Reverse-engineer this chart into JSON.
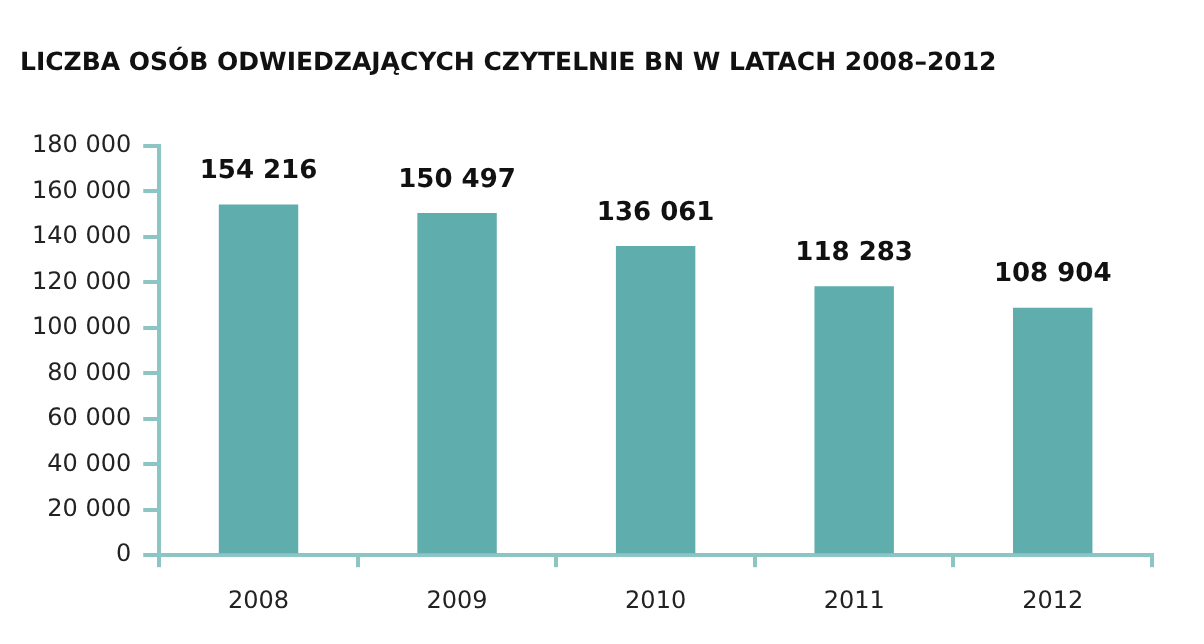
{
  "chart_data": {
    "type": "bar",
    "title": "LICZBA OSÓB ODWIEDZAJĄCYCH CZYTELNIE BN W LATACH 2008–2012",
    "categories": [
      "2008",
      "2009",
      "2010",
      "2011",
      "2012"
    ],
    "values": [
      154216,
      150497,
      136061,
      118283,
      108904
    ],
    "value_labels": [
      "154 216",
      "150 497",
      "136 061",
      "118 283",
      "108 904"
    ],
    "color": "#60adad",
    "ylim": [
      0,
      180000
    ],
    "yticks": [
      {
        "value": 0,
        "label": "0"
      },
      {
        "value": 20000,
        "label": "20 000"
      },
      {
        "value": 40000,
        "label": "40 000"
      },
      {
        "value": 60000,
        "label": "60 000"
      },
      {
        "value": 80000,
        "label": "80 000"
      },
      {
        "value": 100000,
        "label": "100 000"
      },
      {
        "value": 120000,
        "label": "120 000"
      },
      {
        "value": 140000,
        "label": "140 000"
      },
      {
        "value": 160000,
        "label": "160 000"
      },
      {
        "value": 180000,
        "label": "180 000"
      }
    ],
    "grid": false,
    "legend": false
  }
}
